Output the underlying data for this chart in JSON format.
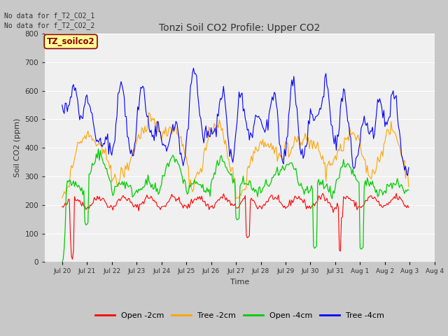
{
  "title": "Tonzi Soil CO2 Profile: Upper CO2",
  "xlabel": "Time",
  "ylabel": "Soil CO2 (ppm)",
  "ylim": [
    0,
    800
  ],
  "yticks": [
    0,
    100,
    200,
    300,
    400,
    500,
    600,
    700,
    800
  ],
  "fig_bg": "#c8c8c8",
  "plot_bg": "#f0f0f0",
  "legend_labels": [
    "Open -2cm",
    "Tree -2cm",
    "Open -4cm",
    "Tree -4cm"
  ],
  "legend_colors": [
    "#ff0000",
    "#ffa500",
    "#00cc00",
    "#0000ff"
  ],
  "no_data_text": [
    "No data for f_T2_CO2_1",
    "No data for f_T2_CO2_2"
  ],
  "watermark_text": "TZ_soilco2",
  "n_points": 336,
  "seed": 42
}
